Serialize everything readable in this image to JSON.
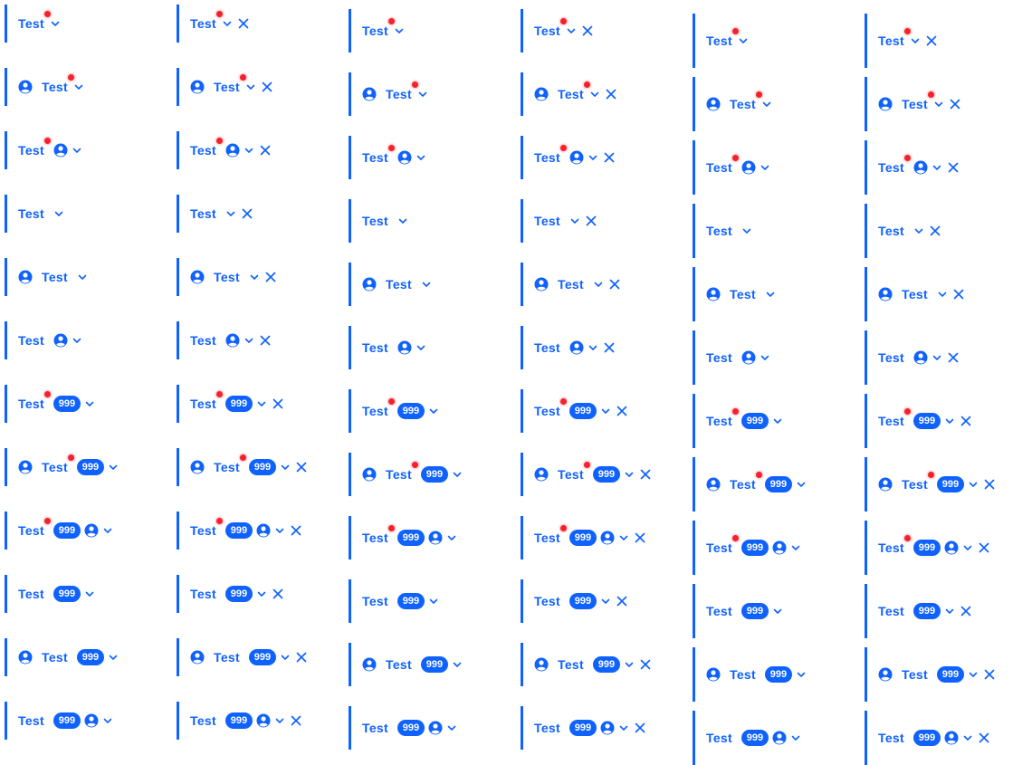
{
  "tab_label": "Test",
  "badge_count": "999",
  "colors": {
    "accent": "#0f62fe",
    "dot": "#f5222d",
    "background": "#ffffff"
  },
  "icons": {
    "avatar": "user-circle-icon",
    "dropdown": "chevron-down-icon",
    "close": "close-icon",
    "notification": "notification-dot"
  },
  "column_closable": [
    false,
    true,
    false,
    true,
    false,
    true
  ],
  "variants": [
    {
      "row": 1,
      "avatar_left": false,
      "dot": true,
      "badge": false,
      "avatar_right": false
    },
    {
      "row": 2,
      "avatar_left": true,
      "dot": true,
      "badge": false,
      "avatar_right": false
    },
    {
      "row": 3,
      "avatar_left": false,
      "dot": true,
      "badge": false,
      "avatar_right": true
    },
    {
      "row": 4,
      "avatar_left": false,
      "dot": false,
      "badge": false,
      "avatar_right": false
    },
    {
      "row": 5,
      "avatar_left": true,
      "dot": false,
      "badge": false,
      "avatar_right": false
    },
    {
      "row": 6,
      "avatar_left": false,
      "dot": false,
      "badge": false,
      "avatar_right": true
    },
    {
      "row": 7,
      "avatar_left": false,
      "dot": true,
      "badge": true,
      "avatar_right": false
    },
    {
      "row": 8,
      "avatar_left": true,
      "dot": true,
      "badge": true,
      "avatar_right": false
    },
    {
      "row": 9,
      "avatar_left": false,
      "dot": true,
      "badge": true,
      "avatar_right": true
    },
    {
      "row": 10,
      "avatar_left": false,
      "dot": false,
      "badge": true,
      "avatar_right": false
    },
    {
      "row": 11,
      "avatar_left": true,
      "dot": false,
      "badge": true,
      "avatar_right": false
    },
    {
      "row": 12,
      "avatar_left": false,
      "dot": false,
      "badge": true,
      "avatar_right": true
    }
  ]
}
